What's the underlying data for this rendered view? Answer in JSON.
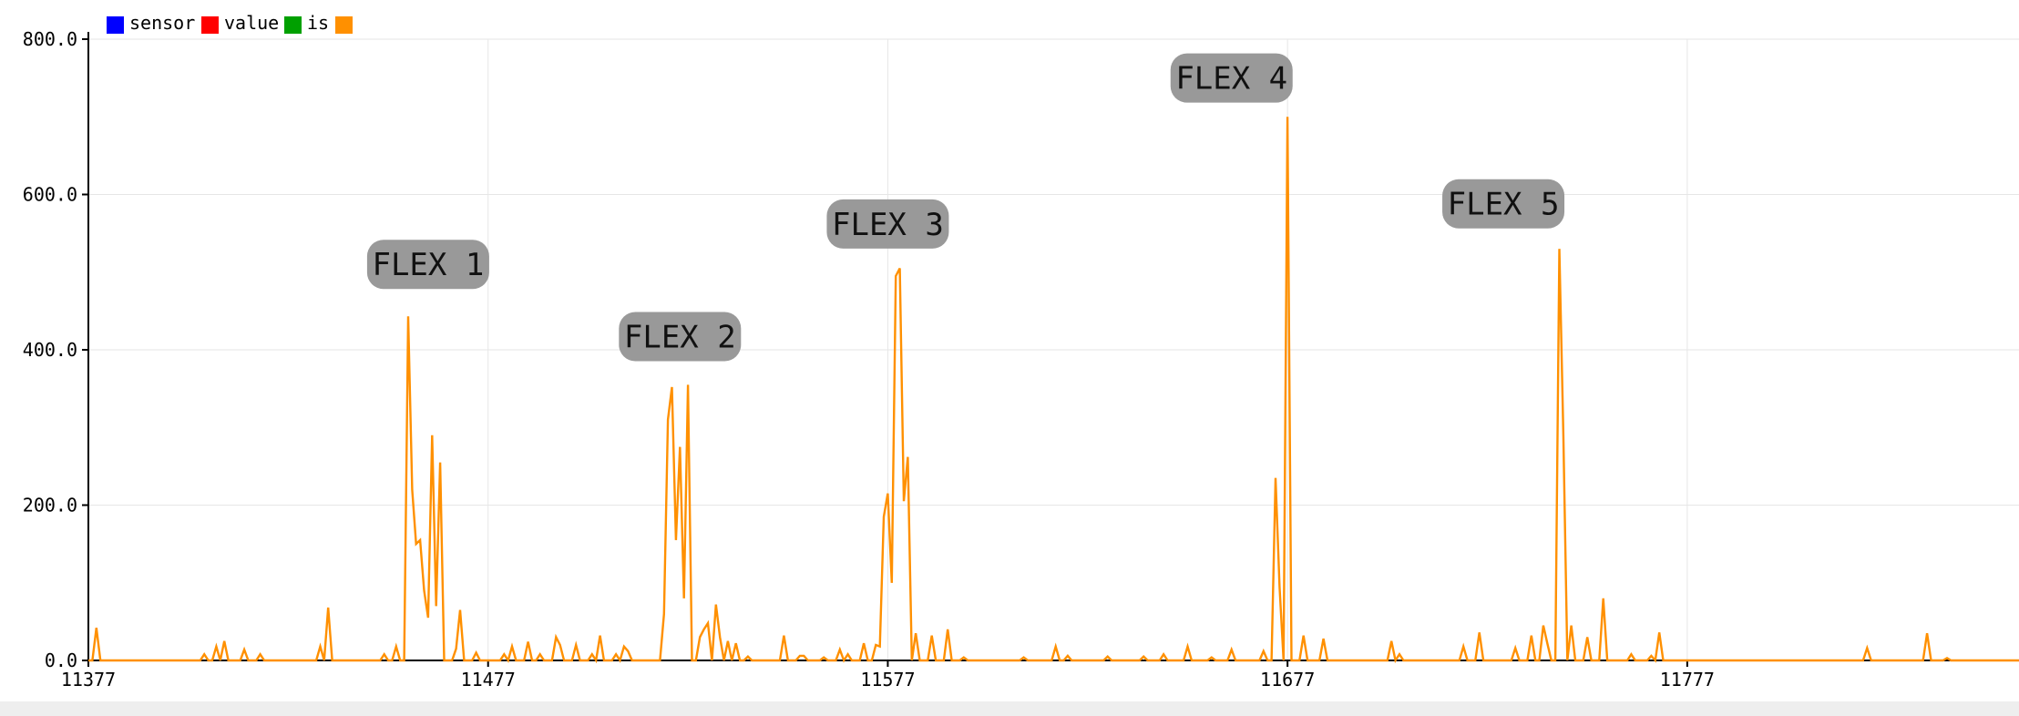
{
  "window": {
    "bottom_bar_color": "#eeeeee"
  },
  "legend": {
    "placement": "top-left",
    "entries": [
      {
        "label": "sensor",
        "color": "#0000ff"
      },
      {
        "label": "value",
        "color": "#ff0000"
      },
      {
        "label": "is",
        "color": "#00a000"
      },
      {
        "label": "",
        "color": "#ff9000"
      }
    ]
  },
  "chart_data": {
    "type": "line",
    "title": "",
    "xlabel": "",
    "ylabel": "",
    "xlim": [
      11377,
      11860
    ],
    "ylim": [
      0,
      800
    ],
    "grid": true,
    "x_ticks": [
      {
        "value": 11377,
        "label": "11377"
      },
      {
        "value": 11477,
        "label": "11477"
      },
      {
        "value": 11577,
        "label": "11577"
      },
      {
        "value": 11677,
        "label": "11677"
      },
      {
        "value": 11777,
        "label": "11777"
      }
    ],
    "y_ticks": [
      {
        "value": 0,
        "label": "0.0"
      },
      {
        "value": 200,
        "label": "200.0"
      },
      {
        "value": 400,
        "label": "400.0"
      },
      {
        "value": 600,
        "label": "600.0"
      },
      {
        "value": 800,
        "label": "800.0"
      }
    ],
    "series": [
      {
        "color": "#ff9000",
        "points": [
          [
            11377,
            0
          ],
          [
            11378,
            0
          ],
          [
            11379,
            42
          ],
          [
            11380,
            0
          ],
          [
            11392,
            0
          ],
          [
            11405,
            0
          ],
          [
            11406,
            8
          ],
          [
            11407,
            0
          ],
          [
            11408,
            0
          ],
          [
            11409,
            18
          ],
          [
            11410,
            0
          ],
          [
            11411,
            25
          ],
          [
            11412,
            0
          ],
          [
            11415,
            0
          ],
          [
            11416,
            14
          ],
          [
            11417,
            0
          ],
          [
            11419,
            0
          ],
          [
            11420,
            8
          ],
          [
            11421,
            0
          ],
          [
            11434,
            0
          ],
          [
            11435,
            18
          ],
          [
            11436,
            0
          ],
          [
            11437,
            68
          ],
          [
            11438,
            0
          ],
          [
            11450,
            0
          ],
          [
            11451,
            8
          ],
          [
            11452,
            0
          ],
          [
            11453,
            0
          ],
          [
            11454,
            18
          ],
          [
            11455,
            0
          ],
          [
            11456,
            0
          ],
          [
            11457,
            443
          ],
          [
            11458,
            220
          ],
          [
            11459,
            150
          ],
          [
            11460,
            155
          ],
          [
            11461,
            90
          ],
          [
            11462,
            55
          ],
          [
            11463,
            290
          ],
          [
            11464,
            70
          ],
          [
            11465,
            255
          ],
          [
            11466,
            0
          ],
          [
            11468,
            0
          ],
          [
            11469,
            15
          ],
          [
            11470,
            65
          ],
          [
            11471,
            0
          ],
          [
            11473,
            0
          ],
          [
            11474,
            10
          ],
          [
            11475,
            0
          ],
          [
            11480,
            0
          ],
          [
            11481,
            8
          ],
          [
            11482,
            0
          ],
          [
            11483,
            18
          ],
          [
            11484,
            0
          ],
          [
            11486,
            0
          ],
          [
            11487,
            24
          ],
          [
            11488,
            0
          ],
          [
            11489,
            0
          ],
          [
            11490,
            8
          ],
          [
            11491,
            0
          ],
          [
            11493,
            0
          ],
          [
            11494,
            30
          ],
          [
            11495,
            20
          ],
          [
            11496,
            0
          ],
          [
            11498,
            0
          ],
          [
            11499,
            20
          ],
          [
            11500,
            0
          ],
          [
            11502,
            0
          ],
          [
            11503,
            8
          ],
          [
            11504,
            0
          ],
          [
            11505,
            32
          ],
          [
            11506,
            0
          ],
          [
            11508,
            0
          ],
          [
            11509,
            8
          ],
          [
            11510,
            0
          ],
          [
            11511,
            18
          ],
          [
            11512,
            12
          ],
          [
            11513,
            0
          ],
          [
            11520,
            0
          ],
          [
            11521,
            60
          ],
          [
            11522,
            310
          ],
          [
            11523,
            352
          ],
          [
            11524,
            155
          ],
          [
            11525,
            275
          ],
          [
            11526,
            80
          ],
          [
            11527,
            355
          ],
          [
            11528,
            0
          ],
          [
            11529,
            0
          ],
          [
            11530,
            30
          ],
          [
            11531,
            40
          ],
          [
            11532,
            48
          ],
          [
            11533,
            0
          ],
          [
            11534,
            72
          ],
          [
            11535,
            30
          ],
          [
            11536,
            0
          ],
          [
            11537,
            25
          ],
          [
            11538,
            0
          ],
          [
            11539,
            22
          ],
          [
            11540,
            0
          ],
          [
            11541,
            0
          ],
          [
            11542,
            5
          ],
          [
            11543,
            0
          ],
          [
            11550,
            0
          ],
          [
            11551,
            32
          ],
          [
            11552,
            0
          ],
          [
            11554,
            0
          ],
          [
            11555,
            6
          ],
          [
            11556,
            6
          ],
          [
            11557,
            0
          ],
          [
            11560,
            0
          ],
          [
            11561,
            4
          ],
          [
            11562,
            0
          ],
          [
            11564,
            0
          ],
          [
            11565,
            14
          ],
          [
            11566,
            0
          ],
          [
            11567,
            8
          ],
          [
            11568,
            0
          ],
          [
            11570,
            0
          ],
          [
            11571,
            22
          ],
          [
            11572,
            0
          ],
          [
            11573,
            0
          ],
          [
            11574,
            20
          ],
          [
            11575,
            18
          ],
          [
            11576,
            185
          ],
          [
            11577,
            215
          ],
          [
            11578,
            100
          ],
          [
            11579,
            495
          ],
          [
            11580,
            505
          ],
          [
            11581,
            205
          ],
          [
            11582,
            262
          ],
          [
            11583,
            0
          ],
          [
            11584,
            35
          ],
          [
            11585,
            0
          ],
          [
            11587,
            0
          ],
          [
            11588,
            32
          ],
          [
            11589,
            0
          ],
          [
            11591,
            0
          ],
          [
            11592,
            40
          ],
          [
            11593,
            0
          ],
          [
            11595,
            0
          ],
          [
            11596,
            4
          ],
          [
            11597,
            0
          ],
          [
            11610,
            0
          ],
          [
            11611,
            4
          ],
          [
            11612,
            0
          ],
          [
            11618,
            0
          ],
          [
            11619,
            18
          ],
          [
            11620,
            0
          ],
          [
            11621,
            0
          ],
          [
            11622,
            6
          ],
          [
            11623,
            0
          ],
          [
            11631,
            0
          ],
          [
            11632,
            5
          ],
          [
            11633,
            0
          ],
          [
            11640,
            0
          ],
          [
            11641,
            5
          ],
          [
            11642,
            0
          ],
          [
            11645,
            0
          ],
          [
            11646,
            8
          ],
          [
            11647,
            0
          ],
          [
            11651,
            0
          ],
          [
            11652,
            18
          ],
          [
            11653,
            0
          ],
          [
            11657,
            0
          ],
          [
            11658,
            4
          ],
          [
            11659,
            0
          ],
          [
            11662,
            0
          ],
          [
            11663,
            14
          ],
          [
            11664,
            0
          ],
          [
            11670,
            0
          ],
          [
            11671,
            12
          ],
          [
            11672,
            0
          ],
          [
            11673,
            0
          ],
          [
            11674,
            235
          ],
          [
            11675,
            95
          ],
          [
            11676,
            0
          ],
          [
            11677,
            700
          ],
          [
            11678,
            0
          ],
          [
            11680,
            0
          ],
          [
            11681,
            32
          ],
          [
            11682,
            0
          ],
          [
            11685,
            0
          ],
          [
            11686,
            28
          ],
          [
            11687,
            0
          ],
          [
            11702,
            0
          ],
          [
            11703,
            25
          ],
          [
            11704,
            0
          ],
          [
            11705,
            8
          ],
          [
            11706,
            0
          ],
          [
            11720,
            0
          ],
          [
            11721,
            18
          ],
          [
            11722,
            0
          ],
          [
            11724,
            0
          ],
          [
            11725,
            36
          ],
          [
            11726,
            0
          ],
          [
            11733,
            0
          ],
          [
            11734,
            16
          ],
          [
            11735,
            0
          ],
          [
            11737,
            0
          ],
          [
            11738,
            32
          ],
          [
            11739,
            0
          ],
          [
            11740,
            0
          ],
          [
            11741,
            45
          ],
          [
            11742,
            22
          ],
          [
            11743,
            0
          ],
          [
            11744,
            0
          ],
          [
            11745,
            530
          ],
          [
            11746,
            290
          ],
          [
            11747,
            0
          ],
          [
            11748,
            45
          ],
          [
            11749,
            0
          ],
          [
            11751,
            0
          ],
          [
            11752,
            30
          ],
          [
            11753,
            0
          ],
          [
            11755,
            0
          ],
          [
            11756,
            80
          ],
          [
            11757,
            0
          ],
          [
            11762,
            0
          ],
          [
            11763,
            8
          ],
          [
            11764,
            0
          ],
          [
            11767,
            0
          ],
          [
            11768,
            6
          ],
          [
            11769,
            0
          ],
          [
            11770,
            36
          ],
          [
            11771,
            0
          ],
          [
            11821,
            0
          ],
          [
            11822,
            16
          ],
          [
            11823,
            0
          ],
          [
            11836,
            0
          ],
          [
            11837,
            35
          ],
          [
            11838,
            0
          ],
          [
            11841,
            0
          ],
          [
            11842,
            3
          ],
          [
            11843,
            0
          ],
          [
            11860,
            0
          ]
        ]
      }
    ],
    "annotations": [
      {
        "text": "FLEX 1",
        "x": 11462,
        "y": 510
      },
      {
        "text": "FLEX 2",
        "x": 11525,
        "y": 417
      },
      {
        "text": "FLEX 3",
        "x": 11577,
        "y": 562
      },
      {
        "text": "FLEX 4",
        "x": 11663,
        "y": 750
      },
      {
        "text": "FLEX 5",
        "x": 11731,
        "y": 588
      }
    ]
  }
}
